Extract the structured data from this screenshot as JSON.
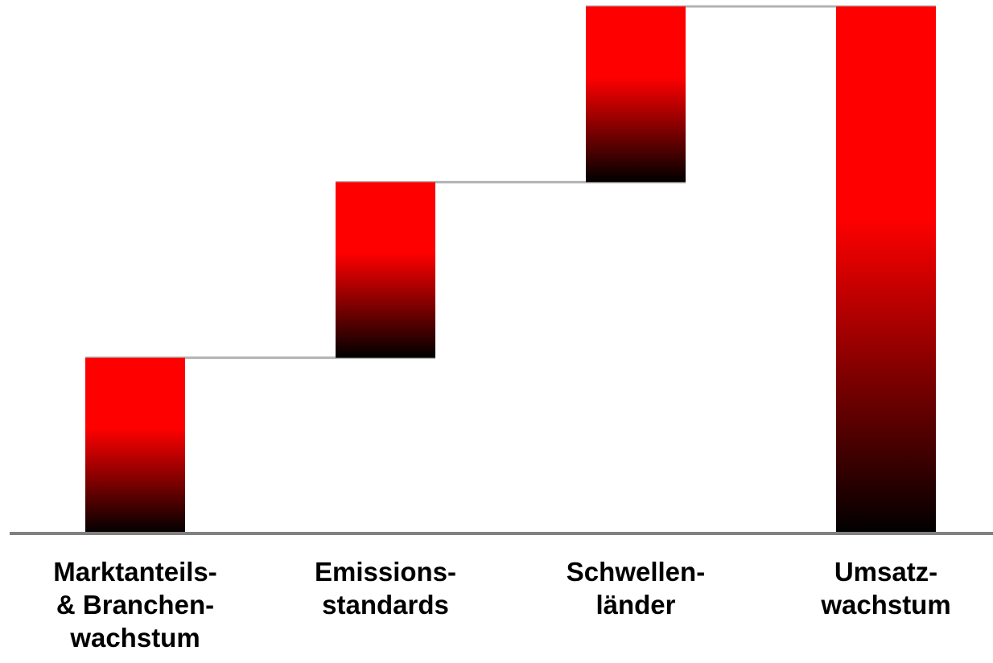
{
  "chart_data": {
    "type": "waterfall",
    "categories": [
      "Marktanteils-\n& Branchen-\nwachstum",
      "Emissions-\nstandards",
      "Schwellen-\nländer",
      "Umsatz-\nwachstum"
    ],
    "values": [
      1,
      1,
      1,
      3
    ],
    "bar_kind": [
      "increment",
      "increment",
      "increment",
      "total"
    ],
    "ylim": [
      0,
      3
    ],
    "grid": false,
    "legend": "none",
    "colors": {
      "bar_top": "#ff0000",
      "bar_bottom": "#000000",
      "connector": "#b3b3b3",
      "baseline": "#808080"
    }
  }
}
